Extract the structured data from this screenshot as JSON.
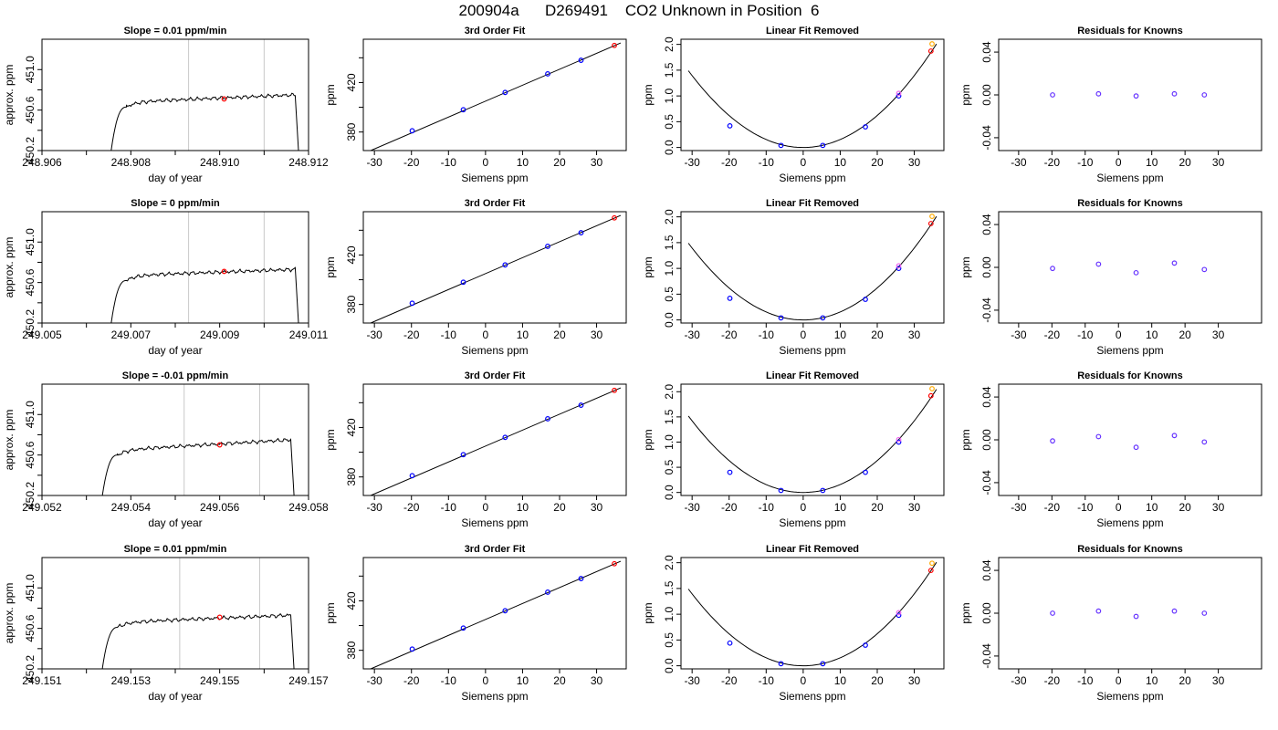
{
  "figure": {
    "title": "200904a      D269491    CO2 Unknown in Position  6"
  },
  "chart_data": [
    {
      "type": "line",
      "row": 1,
      "col": 1,
      "title": "Slope =  0.01  ppm/min",
      "xlabel": "day of year",
      "ylabel": "approx. ppm",
      "xlim": [
        248.906,
        248.912
      ],
      "ylim": [
        450.2,
        451.3
      ],
      "xticks": [
        248.906,
        248.908,
        248.91,
        248.912
      ],
      "xtick_labels": [
        "248.906",
        "248.908",
        "248.910",
        "248.912"
      ],
      "yticks": [
        450.2,
        450.6,
        451.0
      ],
      "ytick_labels": [
        "450.2",
        "450.6",
        "451.0"
      ],
      "vlines": [
        248.9093,
        248.911
      ],
      "marker": {
        "x": 248.9101,
        "y": 450.71,
        "color": "#ff0000"
      },
      "trace": {
        "start": 248.9075,
        "rise_end": 248.9079,
        "plateau_end": 248.9117,
        "end": 248.9118,
        "level_start": 450.68,
        "level_end": 450.75
      }
    },
    {
      "type": "scatter",
      "row": 1,
      "col": 2,
      "title": "3rd Order Fit",
      "xlabel": "Siemens ppm",
      "ylabel": "ppm",
      "xlim": [
        -33,
        38
      ],
      "ylim": [
        365,
        455
      ],
      "xticks": [
        -30,
        -20,
        -10,
        0,
        10,
        20,
        30
      ],
      "yticks": [
        380,
        420
      ],
      "yticks_minor": [
        400,
        440
      ],
      "points": [
        {
          "x": -19.8,
          "y": 381,
          "color": "#0000ff"
        },
        {
          "x": -6.0,
          "y": 398,
          "color": "#0000ff"
        },
        {
          "x": 5.3,
          "y": 412,
          "color": "#0000ff"
        },
        {
          "x": 16.8,
          "y": 427,
          "color": "#0000ff"
        },
        {
          "x": 25.8,
          "y": 438,
          "color": "#0000ff"
        },
        {
          "x": 34.8,
          "y": 450,
          "color": "#ff0000"
        }
      ],
      "fit_line": {
        "x": [
          -31,
          36.5
        ],
        "y": [
          365,
          452
        ]
      }
    },
    {
      "type": "scatter",
      "row": 1,
      "col": 3,
      "title": "Linear Fit Removed",
      "xlabel": "Siemens ppm",
      "ylabel": "ppm",
      "xlim": [
        -33,
        38
      ],
      "ylim": [
        -0.06,
        2.1
      ],
      "xticks": [
        -30,
        -20,
        -10,
        0,
        10,
        20,
        30
      ],
      "yticks": [
        0.0,
        0.5,
        1.0,
        1.5,
        2.0
      ],
      "ytick_labels": [
        "0.0",
        "0.5",
        "1.0",
        "1.5",
        "2.0"
      ],
      "curve_a": 0.00155,
      "curve_x": [
        -31,
        36
      ],
      "points": [
        {
          "x": -19.8,
          "y": 0.42,
          "color": "#0000ff"
        },
        {
          "x": -6.0,
          "y": 0.04,
          "color": "#0000ff"
        },
        {
          "x": 5.3,
          "y": 0.04,
          "color": "#0000ff"
        },
        {
          "x": 16.8,
          "y": 0.4,
          "color": "#0000ff"
        },
        {
          "x": 25.8,
          "y": 1.0,
          "color": "#0000ff"
        },
        {
          "x": 25.8,
          "y": 1.05,
          "color": "#ee66ee"
        },
        {
          "x": 34.5,
          "y": 1.87,
          "color": "#ff0000"
        },
        {
          "x": 34.8,
          "y": 2.01,
          "color": "#ffaa00"
        }
      ]
    },
    {
      "type": "scatter",
      "row": 1,
      "col": 4,
      "title": "Residuals for Knowns",
      "xlabel": "Siemens ppm",
      "ylabel": "ppm",
      "xlim": [
        -36,
        43
      ],
      "ylim": [
        -0.052,
        0.052
      ],
      "xticks": [
        -30,
        -20,
        -10,
        0,
        10,
        20,
        30
      ],
      "yticks": [
        -0.04,
        0.0,
        0.04
      ],
      "ytick_labels": [
        "-0.04",
        "0.00",
        "0.04"
      ],
      "points": [
        {
          "x": -19.8,
          "y": 0.0,
          "color": "#6633ff"
        },
        {
          "x": -6.0,
          "y": 0.001,
          "color": "#6633ff"
        },
        {
          "x": 5.3,
          "y": -0.001,
          "color": "#6633ff"
        },
        {
          "x": 16.8,
          "y": 0.001,
          "color": "#6633ff"
        },
        {
          "x": 25.8,
          "y": 0.0,
          "color": "#6633ff"
        }
      ]
    },
    {
      "type": "line",
      "row": 2,
      "col": 1,
      "title": "Slope =  0  ppm/min",
      "xlabel": "day of year",
      "ylabel": "approx. ppm",
      "xlim": [
        249.005,
        249.011
      ],
      "ylim": [
        450.2,
        451.3
      ],
      "xticks": [
        249.005,
        249.007,
        249.009,
        249.011
      ],
      "xtick_labels": [
        "249.005",
        "249.007",
        "249.009",
        "249.011"
      ],
      "yticks": [
        450.2,
        450.6,
        451.0
      ],
      "ytick_labels": [
        "450.2",
        "450.6",
        "451.0"
      ],
      "vlines": [
        249.0083,
        249.01
      ],
      "marker": {
        "x": 249.0091,
        "y": 450.71,
        "color": "#ff0000"
      },
      "trace": {
        "start": 249.0065,
        "rise_end": 249.0069,
        "plateau_end": 249.0107,
        "end": 249.0108,
        "level_start": 450.67,
        "level_end": 450.73
      }
    },
    {
      "type": "scatter",
      "row": 2,
      "col": 2,
      "title": "3rd Order Fit",
      "xlabel": "Siemens ppm",
      "ylabel": "ppm",
      "xlim": [
        -33,
        38
      ],
      "ylim": [
        365,
        455
      ],
      "xticks": [
        -30,
        -20,
        -10,
        0,
        10,
        20,
        30
      ],
      "yticks": [
        380,
        420
      ],
      "yticks_minor": [
        400,
        440
      ],
      "points": [
        {
          "x": -19.8,
          "y": 381,
          "color": "#0000ff"
        },
        {
          "x": -6.0,
          "y": 398,
          "color": "#0000ff"
        },
        {
          "x": 5.3,
          "y": 412,
          "color": "#0000ff"
        },
        {
          "x": 16.8,
          "y": 427,
          "color": "#0000ff"
        },
        {
          "x": 25.8,
          "y": 438,
          "color": "#0000ff"
        },
        {
          "x": 34.8,
          "y": 450,
          "color": "#ff0000"
        }
      ],
      "fit_line": {
        "x": [
          -31,
          36.5
        ],
        "y": [
          365,
          452
        ]
      }
    },
    {
      "type": "scatter",
      "row": 2,
      "col": 3,
      "title": "Linear Fit Removed",
      "xlabel": "Siemens ppm",
      "ylabel": "ppm",
      "xlim": [
        -33,
        38
      ],
      "ylim": [
        -0.06,
        2.1
      ],
      "xticks": [
        -30,
        -20,
        -10,
        0,
        10,
        20,
        30
      ],
      "yticks": [
        0.0,
        0.5,
        1.0,
        1.5,
        2.0
      ],
      "ytick_labels": [
        "0.0",
        "0.5",
        "1.0",
        "1.5",
        "2.0"
      ],
      "curve_a": 0.00155,
      "curve_x": [
        -31,
        36
      ],
      "points": [
        {
          "x": -19.8,
          "y": 0.42,
          "color": "#0000ff"
        },
        {
          "x": -6.0,
          "y": 0.04,
          "color": "#0000ff"
        },
        {
          "x": 5.3,
          "y": 0.04,
          "color": "#0000ff"
        },
        {
          "x": 16.8,
          "y": 0.4,
          "color": "#0000ff"
        },
        {
          "x": 25.8,
          "y": 1.0,
          "color": "#0000ff"
        },
        {
          "x": 25.8,
          "y": 1.05,
          "color": "#ee66ee"
        },
        {
          "x": 34.5,
          "y": 1.87,
          "color": "#ff0000"
        },
        {
          "x": 34.8,
          "y": 2.01,
          "color": "#ffaa00"
        }
      ]
    },
    {
      "type": "scatter",
      "row": 2,
      "col": 4,
      "title": "Residuals for Knowns",
      "xlabel": "Siemens ppm",
      "ylabel": "ppm",
      "xlim": [
        -36,
        43
      ],
      "ylim": [
        -0.052,
        0.052
      ],
      "xticks": [
        -30,
        -20,
        -10,
        0,
        10,
        20,
        30
      ],
      "yticks": [
        -0.04,
        0.0,
        0.04
      ],
      "ytick_labels": [
        "-0.04",
        "0.00",
        "0.04"
      ],
      "points": [
        {
          "x": -19.8,
          "y": -0.001,
          "color": "#6633ff"
        },
        {
          "x": -6.0,
          "y": 0.003,
          "color": "#6633ff"
        },
        {
          "x": 5.3,
          "y": -0.005,
          "color": "#6633ff"
        },
        {
          "x": 16.8,
          "y": 0.004,
          "color": "#6633ff"
        },
        {
          "x": 25.8,
          "y": -0.002,
          "color": "#6633ff"
        }
      ]
    },
    {
      "type": "line",
      "row": 3,
      "col": 1,
      "title": "Slope =  -0.01  ppm/min",
      "xlabel": "day of year",
      "ylabel": "approx. ppm",
      "xlim": [
        249.052,
        249.058
      ],
      "ylim": [
        450.2,
        451.3
      ],
      "xticks": [
        249.052,
        249.054,
        249.056,
        249.058
      ],
      "xtick_labels": [
        "249.052",
        "249.054",
        "249.056",
        "249.058"
      ],
      "yticks": [
        450.2,
        450.6,
        451.0
      ],
      "ytick_labels": [
        "450.2",
        "450.6",
        "451.0"
      ],
      "vlines": [
        249.0552,
        249.0569
      ],
      "marker": {
        "x": 249.056,
        "y": 450.7,
        "color": "#ff0000"
      },
      "trace": {
        "start": 249.0533,
        "rise_end": 249.0537,
        "plateau_end": 249.0576,
        "end": 249.0577,
        "level_start": 450.65,
        "level_end": 450.75
      }
    },
    {
      "type": "scatter",
      "row": 3,
      "col": 2,
      "title": "3rd Order Fit",
      "xlabel": "Siemens ppm",
      "ylabel": "ppm",
      "xlim": [
        -33,
        38
      ],
      "ylim": [
        365,
        455
      ],
      "xticks": [
        -30,
        -20,
        -10,
        0,
        10,
        20,
        30
      ],
      "yticks": [
        380,
        420
      ],
      "yticks_minor": [
        400,
        440
      ],
      "points": [
        {
          "x": -19.8,
          "y": 381,
          "color": "#0000ff"
        },
        {
          "x": -6.0,
          "y": 398,
          "color": "#0000ff"
        },
        {
          "x": 5.3,
          "y": 412,
          "color": "#0000ff"
        },
        {
          "x": 16.8,
          "y": 427,
          "color": "#0000ff"
        },
        {
          "x": 25.8,
          "y": 438,
          "color": "#0000ff"
        },
        {
          "x": 34.8,
          "y": 450,
          "color": "#ff0000"
        }
      ],
      "fit_line": {
        "x": [
          -31,
          36.5
        ],
        "y": [
          365,
          452
        ]
      }
    },
    {
      "type": "scatter",
      "row": 3,
      "col": 3,
      "title": "Linear Fit Removed",
      "xlabel": "Siemens ppm",
      "ylabel": "ppm",
      "xlim": [
        -33,
        38
      ],
      "ylim": [
        -0.06,
        2.15
      ],
      "xticks": [
        -30,
        -20,
        -10,
        0,
        10,
        20,
        30
      ],
      "yticks": [
        0.0,
        0.5,
        1.0,
        1.5,
        2.0
      ],
      "ytick_labels": [
        "0.0",
        "0.5",
        "1.0",
        "1.5",
        "2.0"
      ],
      "curve_a": 0.00158,
      "curve_x": [
        -31,
        36
      ],
      "points": [
        {
          "x": -19.8,
          "y": 0.4,
          "color": "#0000ff"
        },
        {
          "x": -6.0,
          "y": 0.04,
          "color": "#0000ff"
        },
        {
          "x": 5.3,
          "y": 0.04,
          "color": "#0000ff"
        },
        {
          "x": 16.8,
          "y": 0.4,
          "color": "#0000ff"
        },
        {
          "x": 25.8,
          "y": 1.0,
          "color": "#0000ff"
        },
        {
          "x": 25.8,
          "y": 1.05,
          "color": "#ee66ee"
        },
        {
          "x": 34.5,
          "y": 1.92,
          "color": "#ff0000"
        },
        {
          "x": 34.8,
          "y": 2.06,
          "color": "#ffaa00"
        }
      ]
    },
    {
      "type": "scatter",
      "row": 3,
      "col": 4,
      "title": "Residuals for Knowns",
      "xlabel": "Siemens ppm",
      "ylabel": "ppm",
      "xlim": [
        -36,
        43
      ],
      "ylim": [
        -0.052,
        0.052
      ],
      "xticks": [
        -30,
        -20,
        -10,
        0,
        10,
        20,
        30
      ],
      "yticks": [
        -0.04,
        0.0,
        0.04
      ],
      "ytick_labels": [
        "-0.04",
        "0.00",
        "0.04"
      ],
      "points": [
        {
          "x": -19.8,
          "y": -0.001,
          "color": "#6633ff"
        },
        {
          "x": -6.0,
          "y": 0.003,
          "color": "#6633ff"
        },
        {
          "x": 5.3,
          "y": -0.007,
          "color": "#6633ff"
        },
        {
          "x": 16.8,
          "y": 0.004,
          "color": "#6633ff"
        },
        {
          "x": 25.8,
          "y": -0.002,
          "color": "#6633ff"
        }
      ]
    },
    {
      "type": "line",
      "row": 4,
      "col": 1,
      "title": "Slope =  0.01  ppm/min",
      "xlabel": "day of year",
      "ylabel": "approx. ppm",
      "xlim": [
        249.151,
        249.157
      ],
      "ylim": [
        450.2,
        451.3
      ],
      "xticks": [
        249.151,
        249.153,
        249.155,
        249.157
      ],
      "xtick_labels": [
        "249.151",
        "249.153",
        "249.155",
        "249.157"
      ],
      "yticks": [
        450.2,
        450.6,
        451.0
      ],
      "ytick_labels": [
        "450.2",
        "450.6",
        "451.0"
      ],
      "vlines": [
        249.1541,
        249.1559
      ],
      "marker": {
        "x": 249.155,
        "y": 450.71,
        "color": "#ff0000"
      },
      "trace": {
        "start": 249.1523,
        "rise_end": 249.1527,
        "plateau_end": 249.1566,
        "end": 249.1567,
        "level_start": 450.66,
        "level_end": 450.73
      }
    },
    {
      "type": "scatter",
      "row": 4,
      "col": 2,
      "title": "3rd Order Fit",
      "xlabel": "Siemens ppm",
      "ylabel": "ppm",
      "xlim": [
        -33,
        38
      ],
      "ylim": [
        365,
        455
      ],
      "xticks": [
        -30,
        -20,
        -10,
        0,
        10,
        20,
        30
      ],
      "yticks": [
        380,
        420
      ],
      "yticks_minor": [
        400,
        440
      ],
      "points": [
        {
          "x": -19.8,
          "y": 381,
          "color": "#0000ff"
        },
        {
          "x": -6.0,
          "y": 398,
          "color": "#0000ff"
        },
        {
          "x": 5.3,
          "y": 412,
          "color": "#0000ff"
        },
        {
          "x": 16.8,
          "y": 427,
          "color": "#0000ff"
        },
        {
          "x": 25.8,
          "y": 438,
          "color": "#0000ff"
        },
        {
          "x": 34.8,
          "y": 450,
          "color": "#ff0000"
        }
      ],
      "fit_line": {
        "x": [
          -31,
          36.5
        ],
        "y": [
          365,
          452
        ]
      }
    },
    {
      "type": "scatter",
      "row": 4,
      "col": 3,
      "title": "Linear Fit Removed",
      "xlabel": "Siemens ppm",
      "ylabel": "ppm",
      "xlim": [
        -33,
        38
      ],
      "ylim": [
        -0.06,
        2.1
      ],
      "xticks": [
        -30,
        -20,
        -10,
        0,
        10,
        20,
        30
      ],
      "yticks": [
        0.0,
        0.5,
        1.0,
        1.5,
        2.0
      ],
      "ytick_labels": [
        "0.0",
        "0.5",
        "1.0",
        "1.5",
        "2.0"
      ],
      "curve_a": 0.00155,
      "curve_x": [
        -31,
        36
      ],
      "points": [
        {
          "x": -19.8,
          "y": 0.44,
          "color": "#0000ff"
        },
        {
          "x": -6.0,
          "y": 0.04,
          "color": "#0000ff"
        },
        {
          "x": 5.3,
          "y": 0.04,
          "color": "#0000ff"
        },
        {
          "x": 16.8,
          "y": 0.4,
          "color": "#0000ff"
        },
        {
          "x": 25.8,
          "y": 0.98,
          "color": "#0000ff"
        },
        {
          "x": 25.8,
          "y": 1.03,
          "color": "#ee66ee"
        },
        {
          "x": 34.5,
          "y": 1.85,
          "color": "#ff0000"
        },
        {
          "x": 34.8,
          "y": 1.99,
          "color": "#ffaa00"
        }
      ]
    },
    {
      "type": "scatter",
      "row": 4,
      "col": 4,
      "title": "Residuals for Knowns",
      "xlabel": "Siemens ppm",
      "ylabel": "ppm",
      "xlim": [
        -36,
        43
      ],
      "ylim": [
        -0.052,
        0.052
      ],
      "xticks": [
        -30,
        -20,
        -10,
        0,
        10,
        20,
        30
      ],
      "yticks": [
        -0.04,
        0.0,
        0.04
      ],
      "ytick_labels": [
        "-0.04",
        "0.00",
        "0.04"
      ],
      "points": [
        {
          "x": -19.8,
          "y": 0.0,
          "color": "#6633ff"
        },
        {
          "x": -6.0,
          "y": 0.002,
          "color": "#6633ff"
        },
        {
          "x": 5.3,
          "y": -0.003,
          "color": "#6633ff"
        },
        {
          "x": 16.8,
          "y": 0.002,
          "color": "#6633ff"
        },
        {
          "x": 25.8,
          "y": 0.0,
          "color": "#6633ff"
        }
      ]
    }
  ]
}
